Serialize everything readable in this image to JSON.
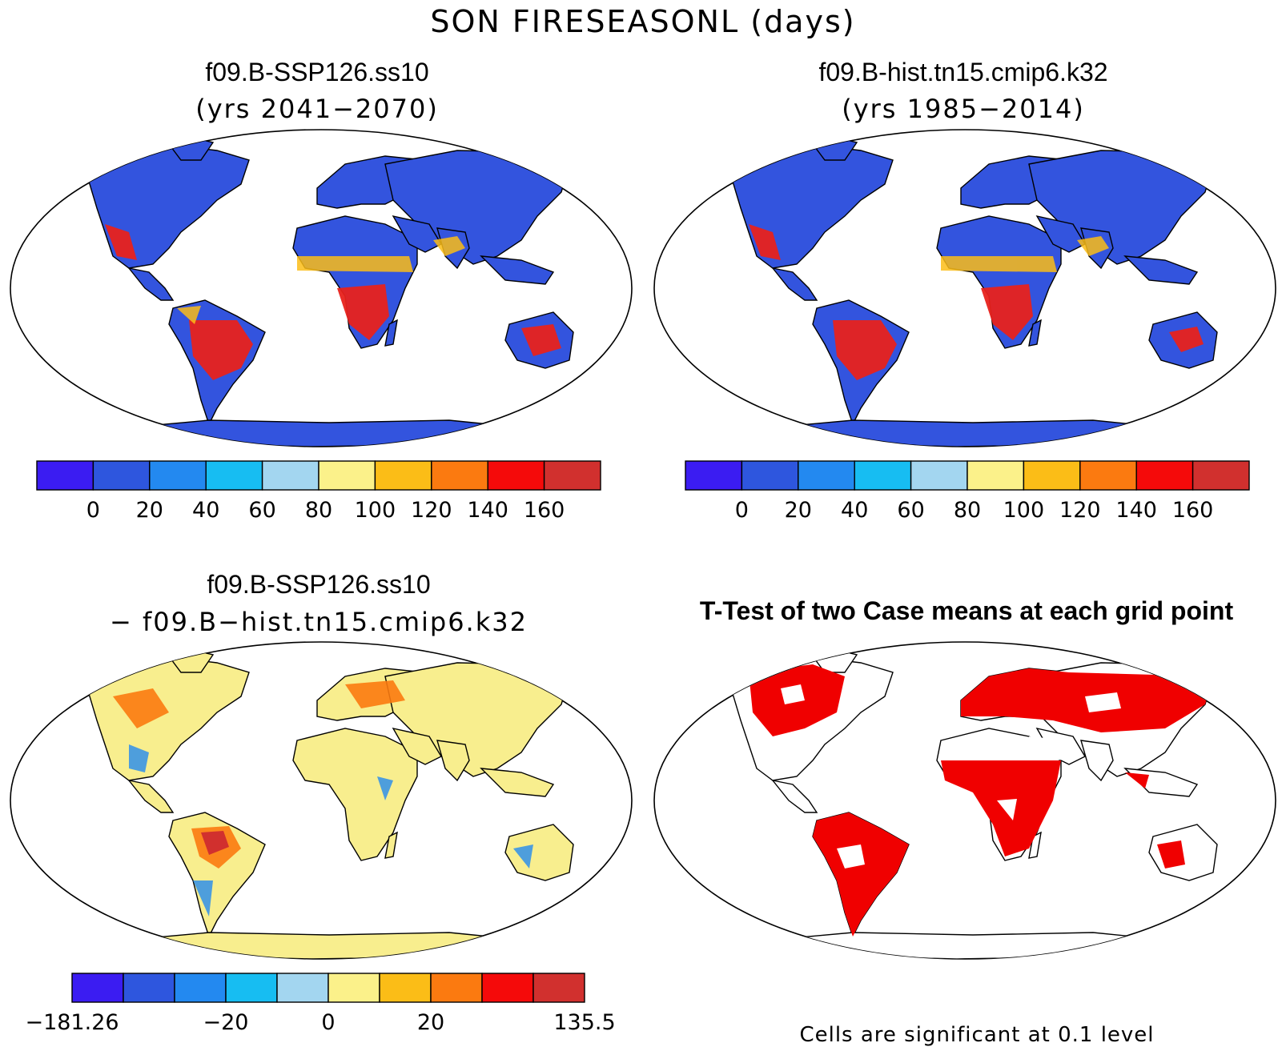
{
  "title": "SON FIRESEASONL (days)",
  "colors": {
    "scale": [
      "#3b1cf2",
      "#2e56de",
      "#2389f0",
      "#17bdf2",
      "#a3d6f0",
      "#fbf18a",
      "#fbbd17",
      "#fb7a10",
      "#f50a0a",
      "#d1302e"
    ],
    "land_low": "#3354de",
    "land_mid": "#28a7f0",
    "land_hot": "#e8221c",
    "diff_base": "#f8ee8e",
    "significant": "#f00000"
  },
  "panels": [
    {
      "id": "ssp126",
      "title": "f09.B-SSP126.ss10",
      "subtitle": "(yrs 2041−2070)",
      "colorbar_labels": [
        "0",
        "20",
        "40",
        "60",
        "80",
        "100",
        "120",
        "140",
        "160"
      ]
    },
    {
      "id": "hist",
      "title": "f09.B-hist.tn15.cmip6.k32",
      "subtitle": "(yrs 1985−2014)",
      "colorbar_labels": [
        "0",
        "20",
        "40",
        "60",
        "80",
        "100",
        "120",
        "140",
        "160"
      ]
    },
    {
      "id": "diff",
      "title": "f09.B-SSP126.ss10",
      "subtitle": "− f09.B−hist.tn15.cmip6.k32",
      "colorbar_labels": [
        "−181.26",
        "−20",
        "0",
        "20",
        "135.5"
      ]
    },
    {
      "id": "ttest",
      "title": "T-Test of two Case means at each grid point",
      "note": "Cells are significant at 0.1 level"
    }
  ]
}
